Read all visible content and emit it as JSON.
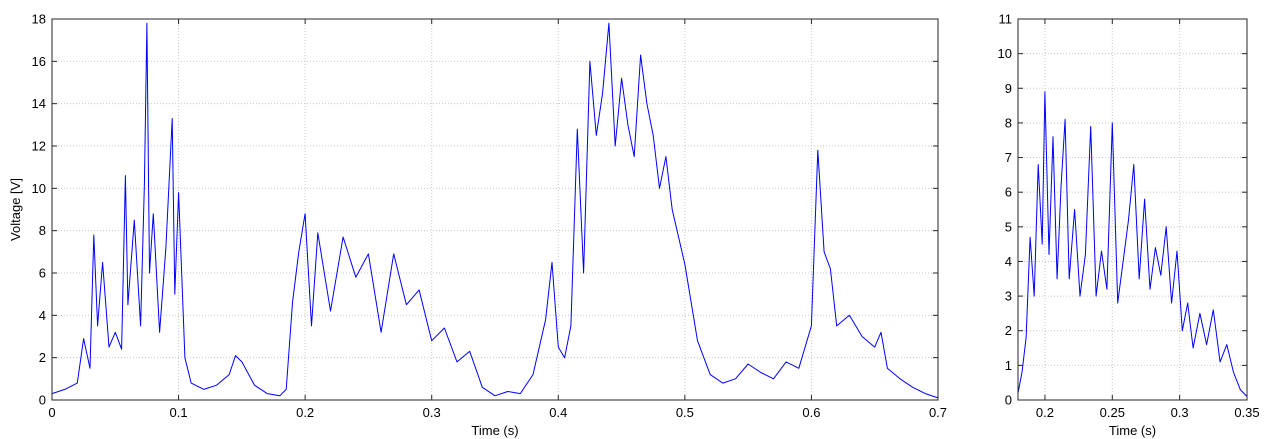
{
  "chart_data": [
    {
      "type": "line",
      "title": "",
      "xlabel": "Time (s)",
      "ylabel": "Voltage [V]",
      "xlim": [
        0,
        0.7
      ],
      "ylim": [
        0,
        18
      ],
      "xticks": [
        0,
        0.1,
        0.2,
        0.3,
        0.4,
        0.5,
        0.6,
        0.7
      ],
      "xtick_labels": [
        "0",
        "0.1",
        "0.2",
        "0.3",
        "0.4",
        "0.5",
        "0.6",
        "0.7"
      ],
      "yticks": [
        0,
        2,
        4,
        6,
        8,
        10,
        12,
        14,
        16,
        18
      ],
      "ytick_labels": [
        "0",
        "2",
        "4",
        "6",
        "8",
        "10",
        "12",
        "14",
        "16",
        "18"
      ],
      "grid": true,
      "line_color": "#0000ff",
      "series": [
        {
          "x": [
            0,
            0.01,
            0.02,
            0.025,
            0.03,
            0.033,
            0.036,
            0.04,
            0.045,
            0.05,
            0.055,
            0.058,
            0.06,
            0.065,
            0.07,
            0.073,
            0.075,
            0.077,
            0.08,
            0.085,
            0.09,
            0.095,
            0.097,
            0.1,
            0.105,
            0.11,
            0.12,
            0.13,
            0.14,
            0.145,
            0.15,
            0.16,
            0.17,
            0.18,
            0.185,
            0.19,
            0.195,
            0.2,
            0.205,
            0.21,
            0.22,
            0.23,
            0.24,
            0.25,
            0.26,
            0.27,
            0.28,
            0.29,
            0.3,
            0.31,
            0.32,
            0.33,
            0.34,
            0.35,
            0.36,
            0.37,
            0.38,
            0.39,
            0.395,
            0.4,
            0.405,
            0.41,
            0.415,
            0.42,
            0.425,
            0.43,
            0.435,
            0.44,
            0.445,
            0.45,
            0.455,
            0.46,
            0.465,
            0.47,
            0.475,
            0.48,
            0.485,
            0.49,
            0.5,
            0.51,
            0.52,
            0.53,
            0.54,
            0.55,
            0.56,
            0.57,
            0.58,
            0.59,
            0.6,
            0.605,
            0.61,
            0.615,
            0.62,
            0.63,
            0.64,
            0.65,
            0.655,
            0.66,
            0.67,
            0.68,
            0.69,
            0.7
          ],
          "y": [
            0.3,
            0.5,
            0.8,
            2.9,
            1.5,
            7.8,
            3.5,
            6.5,
            2.5,
            3.2,
            2.4,
            10.6,
            4.5,
            8.5,
            3.5,
            10.2,
            17.8,
            6.0,
            8.8,
            3.2,
            7.2,
            13.3,
            5.0,
            9.8,
            2.0,
            0.8,
            0.5,
            0.7,
            1.2,
            2.1,
            1.8,
            0.7,
            0.3,
            0.2,
            0.5,
            4.6,
            7.0,
            8.8,
            3.5,
            7.9,
            4.2,
            7.7,
            5.8,
            6.9,
            3.2,
            6.9,
            4.5,
            5.2,
            2.8,
            3.4,
            1.8,
            2.3,
            0.6,
            0.2,
            0.4,
            0.3,
            1.2,
            3.8,
            6.5,
            2.5,
            2.0,
            3.5,
            12.8,
            6.0,
            16.0,
            12.5,
            14.5,
            17.8,
            12.0,
            15.2,
            13.0,
            11.5,
            16.3,
            14.0,
            12.5,
            10.0,
            11.5,
            9.0,
            6.4,
            2.8,
            1.2,
            0.8,
            1.0,
            1.7,
            1.3,
            1.0,
            1.8,
            1.5,
            3.5,
            11.8,
            7.0,
            6.2,
            3.5,
            4.0,
            3.0,
            2.5,
            3.2,
            1.5,
            1.0,
            0.6,
            0.3,
            0.1
          ]
        }
      ]
    },
    {
      "type": "line",
      "title": "",
      "xlabel": "Time (s)",
      "ylabel": "",
      "xlim": [
        0.18,
        0.35
      ],
      "ylim": [
        0,
        11
      ],
      "xticks": [
        0.2,
        0.25,
        0.3,
        0.35
      ],
      "xtick_labels": [
        "0.2",
        "0.25",
        "0.3",
        "0.35"
      ],
      "yticks": [
        0,
        1,
        2,
        3,
        4,
        5,
        6,
        7,
        8,
        9,
        10,
        11
      ],
      "ytick_labels": [
        "0",
        "1",
        "2",
        "3",
        "4",
        "5",
        "6",
        "7",
        "8",
        "9",
        "10",
        "11"
      ],
      "grid": true,
      "line_color": "#0000ff",
      "series": [
        {
          "x": [
            0.18,
            0.183,
            0.186,
            0.189,
            0.192,
            0.195,
            0.198,
            0.2,
            0.203,
            0.206,
            0.209,
            0.212,
            0.215,
            0.218,
            0.222,
            0.226,
            0.23,
            0.234,
            0.238,
            0.242,
            0.246,
            0.25,
            0.254,
            0.258,
            0.262,
            0.266,
            0.27,
            0.274,
            0.278,
            0.282,
            0.286,
            0.29,
            0.294,
            0.298,
            0.302,
            0.306,
            0.31,
            0.315,
            0.32,
            0.325,
            0.33,
            0.335,
            0.34,
            0.345,
            0.35
          ],
          "y": [
            0.2,
            0.8,
            1.8,
            4.7,
            3.0,
            6.8,
            4.5,
            8.9,
            4.2,
            7.6,
            3.5,
            6.2,
            8.1,
            3.5,
            5.5,
            3.0,
            4.2,
            7.9,
            3.0,
            4.3,
            3.2,
            8.0,
            2.8,
            4.0,
            5.2,
            6.8,
            3.5,
            5.8,
            3.2,
            4.4,
            3.6,
            5.0,
            2.8,
            4.3,
            2.0,
            2.8,
            1.5,
            2.5,
            1.6,
            2.6,
            1.1,
            1.6,
            0.8,
            0.3,
            0.1
          ]
        }
      ]
    }
  ]
}
